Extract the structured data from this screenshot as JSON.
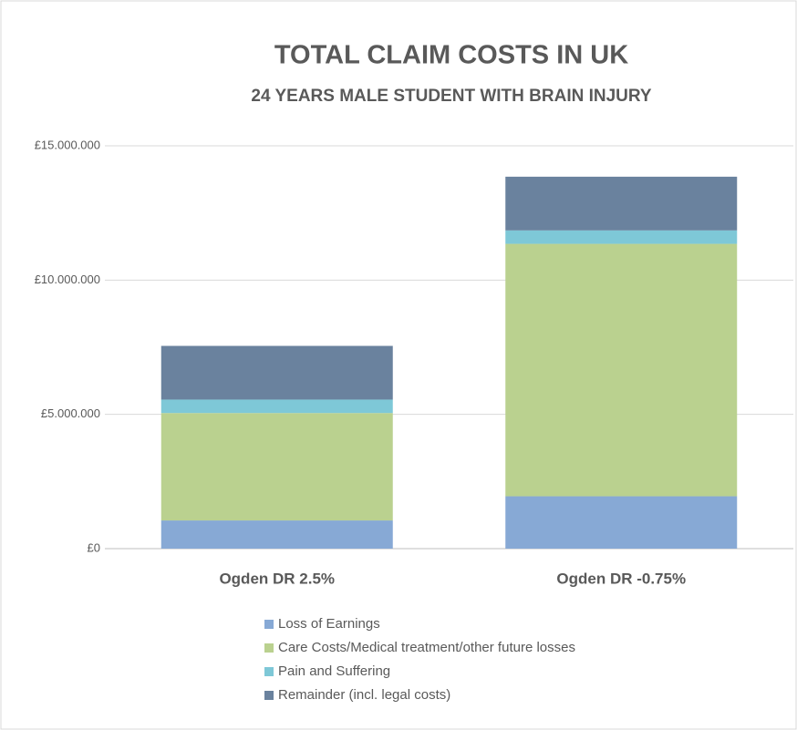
{
  "chart_data": {
    "type": "stacked_bar",
    "title": "TOTAL CLAIM COSTS IN UK",
    "subtitle": "24 YEARS MALE STUDENT WITH BRAIN INJURY",
    "categories": [
      "Ogden DR 2.5%",
      "Ogden DR -0.75%"
    ],
    "series": [
      {
        "name": "Loss of Earnings",
        "color": "#87a9d5",
        "values": [
          1050000,
          1950000
        ]
      },
      {
        "name": "Care Costs/Medical treatment/other future losses",
        "color": "#bad18f",
        "values": [
          4000000,
          9400000
        ]
      },
      {
        "name": "Pain and Suffering",
        "color": "#7ec8d7",
        "values": [
          500000,
          500000
        ]
      },
      {
        "name": "Remainder (incl. legal costs)",
        "color": "#6a829e",
        "values": [
          2000000,
          2000000
        ]
      }
    ],
    "ylim": [
      0,
      15000000
    ],
    "yticks": [
      {
        "value": 0,
        "label": "£0"
      },
      {
        "value": 5000000,
        "label": "£5.000.000"
      },
      {
        "value": 10000000,
        "label": "£10.000.000"
      },
      {
        "value": 15000000,
        "label": "£15.000.000"
      }
    ],
    "grid": true
  }
}
